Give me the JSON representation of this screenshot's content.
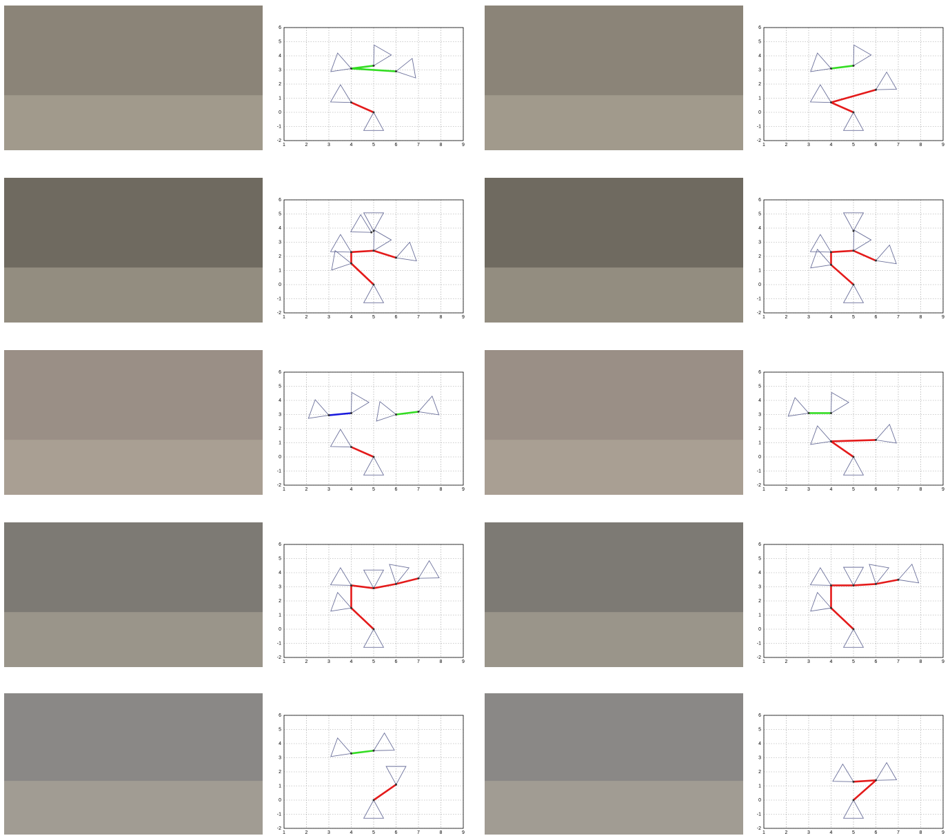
{
  "chart_data": [
    {
      "type": "cones",
      "xlim": [
        1,
        9
      ],
      "ylim": [
        -2,
        6
      ],
      "xticks": [
        1,
        2,
        3,
        4,
        5,
        6,
        7,
        8,
        9
      ],
      "yticks": [
        -2,
        -1,
        0,
        1,
        2,
        3,
        4,
        5,
        6
      ],
      "grid": true,
      "cone_color": "#6a6f9a",
      "x": [
        4,
        5,
        6,
        4,
        5
      ],
      "y": [
        3.1,
        3.3,
        2.9,
        0.7,
        0
      ],
      "angles": [
        160,
        60,
        10,
        150,
        -90
      ],
      "links": [
        {
          "color": "#33dd22",
          "x": [
            4,
            5
          ],
          "y": [
            3.1,
            3.3
          ]
        },
        {
          "color": "#33dd22",
          "x": [
            4,
            6
          ],
          "y": [
            3.1,
            2.9
          ]
        },
        {
          "color": "#e41a1a",
          "x": [
            4,
            5
          ],
          "y": [
            0.7,
            0
          ]
        }
      ]
    },
    {
      "type": "cones",
      "xlim": [
        1,
        9
      ],
      "ylim": [
        -2,
        6
      ],
      "xticks": [
        1,
        2,
        3,
        4,
        5,
        6,
        7,
        8,
        9
      ],
      "yticks": [
        -2,
        -1,
        0,
        1,
        2,
        3,
        4,
        5,
        6
      ],
      "grid": true,
      "cone_color": "#6a6f9a",
      "x": [
        4,
        5,
        4,
        5,
        6
      ],
      "y": [
        3.1,
        3.3,
        0.7,
        0,
        1.6
      ],
      "angles": [
        160,
        60,
        150,
        -90,
        30
      ],
      "links": [
        {
          "color": "#33dd22",
          "x": [
            4,
            5
          ],
          "y": [
            3.1,
            3.3
          ]
        },
        {
          "color": "#e41a1a",
          "x": [
            4,
            5
          ],
          "y": [
            0.7,
            0
          ]
        },
        {
          "color": "#e41a1a",
          "x": [
            4,
            6
          ],
          "y": [
            0.7,
            1.6
          ]
        }
      ]
    },
    {
      "type": "cones",
      "xlim": [
        1,
        9
      ],
      "ylim": [
        -2,
        6
      ],
      "xticks": [
        1,
        2,
        3,
        4,
        5,
        6,
        7,
        8,
        9
      ],
      "yticks": [
        -2,
        -1,
        0,
        1,
        2,
        3,
        4,
        5,
        6
      ],
      "grid": true,
      "cone_color": "#6a6f9a",
      "x": [
        5,
        4.9,
        4,
        4,
        5,
        6,
        5
      ],
      "y": [
        3.8,
        3.7,
        2.3,
        1.5,
        2.4,
        1.9,
        0
      ],
      "angles": [
        90,
        150,
        150,
        170,
        60,
        20,
        -90
      ],
      "links": [
        {
          "color": "#e41a1a",
          "x": [
            4,
            4
          ],
          "y": [
            1.5,
            2.3
          ]
        },
        {
          "color": "#e41a1a",
          "x": [
            4,
            5
          ],
          "y": [
            2.3,
            2.4
          ]
        },
        {
          "color": "#e41a1a",
          "x": [
            5,
            6
          ],
          "y": [
            2.4,
            1.9
          ]
        },
        {
          "color": "#e41a1a",
          "x": [
            4,
            5
          ],
          "y": [
            1.5,
            0
          ]
        }
      ]
    },
    {
      "type": "cones",
      "xlim": [
        1,
        9
      ],
      "ylim": [
        -2,
        6
      ],
      "xticks": [
        1,
        2,
        3,
        4,
        5,
        6,
        7,
        8,
        9
      ],
      "yticks": [
        -2,
        -1,
        0,
        1,
        2,
        3,
        4,
        5,
        6
      ],
      "grid": true,
      "cone_color": "#6a6f9a",
      "x": [
        5,
        4,
        4,
        5,
        6,
        5
      ],
      "y": [
        3.8,
        2.3,
        1.4,
        2.4,
        1.7,
        0
      ],
      "angles": [
        90,
        150,
        160,
        60,
        20,
        -90
      ],
      "links": [
        {
          "color": "#e41a1a",
          "x": [
            4,
            4
          ],
          "y": [
            1.4,
            2.3
          ]
        },
        {
          "color": "#e41a1a",
          "x": [
            4,
            5
          ],
          "y": [
            2.3,
            2.4
          ]
        },
        {
          "color": "#e41a1a",
          "x": [
            5,
            6
          ],
          "y": [
            2.4,
            1.7
          ]
        },
        {
          "color": "#e41a1a",
          "x": [
            4,
            5
          ],
          "y": [
            1.4,
            0
          ]
        }
      ]
    },
    {
      "type": "cones",
      "xlim": [
        1,
        9
      ],
      "ylim": [
        -2,
        6
      ],
      "xticks": [
        1,
        2,
        3,
        4,
        5,
        6,
        7,
        8,
        9
      ],
      "yticks": [
        -2,
        -1,
        0,
        1,
        2,
        3,
        4,
        5,
        6
      ],
      "grid": true,
      "cone_color": "#6a6f9a",
      "x": [
        3,
        4,
        6,
        7,
        4,
        5
      ],
      "y": [
        2.95,
        3.1,
        3,
        3.2,
        0.7,
        0
      ],
      "angles": [
        160,
        60,
        170,
        20,
        150,
        -90
      ],
      "links": [
        {
          "color": "#1a1add",
          "x": [
            3,
            4
          ],
          "y": [
            2.95,
            3.1
          ]
        },
        {
          "color": "#33dd22",
          "x": [
            6,
            7
          ],
          "y": [
            3,
            3.2
          ]
        },
        {
          "color": "#e41a1a",
          "x": [
            4,
            5
          ],
          "y": [
            0.7,
            0
          ]
        }
      ]
    },
    {
      "type": "cones",
      "xlim": [
        1,
        9
      ],
      "ylim": [
        -2,
        6
      ],
      "xticks": [
        1,
        2,
        3,
        4,
        5,
        6,
        7,
        8,
        9
      ],
      "yticks": [
        -2,
        -1,
        0,
        1,
        2,
        3,
        4,
        5,
        6
      ],
      "grid": true,
      "cone_color": "#6a6f9a",
      "x": [
        3,
        4,
        4,
        6,
        5
      ],
      "y": [
        3.1,
        3.1,
        1.1,
        1.2,
        0
      ],
      "angles": [
        160,
        60,
        160,
        20,
        -90
      ],
      "links": [
        {
          "color": "#33dd22",
          "x": [
            3,
            4
          ],
          "y": [
            3.1,
            3.1
          ]
        },
        {
          "color": "#e41a1a",
          "x": [
            4,
            6
          ],
          "y": [
            1.1,
            1.2
          ]
        },
        {
          "color": "#e41a1a",
          "x": [
            4,
            5
          ],
          "y": [
            1.1,
            0
          ]
        }
      ]
    },
    {
      "type": "cones",
      "xlim": [
        1,
        9
      ],
      "ylim": [
        -2,
        6
      ],
      "xticks": [
        1,
        2,
        3,
        4,
        5,
        6,
        7,
        8,
        9
      ],
      "yticks": [
        -2,
        -1,
        0,
        1,
        2,
        3,
        4,
        5,
        6
      ],
      "grid": true,
      "cone_color": "#6a6f9a",
      "x": [
        4,
        4,
        5,
        6,
        7,
        5
      ],
      "y": [
        3.1,
        1.5,
        2.9,
        3.2,
        3.6,
        0
      ],
      "angles": [
        150,
        160,
        90,
        80,
        30,
        -90
      ],
      "links": [
        {
          "color": "#e41a1a",
          "x": [
            4,
            4
          ],
          "y": [
            3.1,
            1.5
          ]
        },
        {
          "color": "#e41a1a",
          "x": [
            4,
            5
          ],
          "y": [
            1.5,
            0
          ]
        },
        {
          "color": "#e41a1a",
          "x": [
            4,
            5
          ],
          "y": [
            3.1,
            2.9
          ]
        },
        {
          "color": "#e41a1a",
          "x": [
            5,
            6
          ],
          "y": [
            2.9,
            3.2
          ]
        },
        {
          "color": "#e41a1a",
          "x": [
            6,
            7
          ],
          "y": [
            3.2,
            3.6
          ]
        }
      ]
    },
    {
      "type": "cones",
      "xlim": [
        1,
        9
      ],
      "ylim": [
        -2,
        6
      ],
      "xticks": [
        1,
        2,
        3,
        4,
        5,
        6,
        7,
        8,
        9
      ],
      "yticks": [
        -2,
        -1,
        0,
        1,
        2,
        3,
        4,
        5,
        6
      ],
      "grid": true,
      "cone_color": "#6a6f9a",
      "x": [
        4,
        4,
        5,
        6,
        7,
        5
      ],
      "y": [
        3.1,
        1.5,
        3.1,
        3.2,
        3.5,
        0
      ],
      "angles": [
        150,
        160,
        90,
        80,
        20,
        -90
      ],
      "links": [
        {
          "color": "#e41a1a",
          "x": [
            4,
            4
          ],
          "y": [
            3.1,
            1.5
          ]
        },
        {
          "color": "#e41a1a",
          "x": [
            4,
            5
          ],
          "y": [
            1.5,
            0
          ]
        },
        {
          "color": "#e41a1a",
          "x": [
            4,
            5
          ],
          "y": [
            3.1,
            3.1
          ]
        },
        {
          "color": "#e41a1a",
          "x": [
            5,
            6
          ],
          "y": [
            3.1,
            3.2
          ]
        },
        {
          "color": "#e41a1a",
          "x": [
            6,
            7
          ],
          "y": [
            3.2,
            3.5
          ]
        }
      ]
    },
    {
      "type": "cones",
      "xlim": [
        1,
        9
      ],
      "ylim": [
        -2,
        6
      ],
      "xticks": [
        1,
        2,
        3,
        4,
        5,
        6,
        7,
        8,
        9
      ],
      "yticks": [
        -2,
        -1,
        0,
        1,
        2,
        3,
        4,
        5,
        6
      ],
      "grid": true,
      "cone_color": "#6a6f9a",
      "x": [
        4,
        5,
        6,
        5
      ],
      "y": [
        3.3,
        3.5,
        1.1,
        0
      ],
      "angles": [
        160,
        30,
        90,
        -90
      ],
      "links": [
        {
          "color": "#33dd22",
          "x": [
            4,
            5
          ],
          "y": [
            3.3,
            3.5
          ]
        },
        {
          "color": "#e41a1a",
          "x": [
            5,
            6
          ],
          "y": [
            0,
            1.1
          ]
        }
      ]
    },
    {
      "type": "cones",
      "xlim": [
        1,
        9
      ],
      "ylim": [
        -2,
        6
      ],
      "xticks": [
        1,
        2,
        3,
        4,
        5,
        6,
        7,
        8,
        9
      ],
      "yticks": [
        -2,
        -1,
        0,
        1,
        2,
        3,
        4,
        5,
        6
      ],
      "grid": true,
      "cone_color": "#6a6f9a",
      "x": [
        5,
        6,
        5
      ],
      "y": [
        1.3,
        1.4,
        0
      ],
      "angles": [
        150,
        30,
        -90
      ],
      "links": [
        {
          "color": "#e41a1a",
          "x": [
            5,
            6
          ],
          "y": [
            1.3,
            1.4
          ]
        },
        {
          "color": "#e41a1a",
          "x": [
            6,
            5
          ],
          "y": [
            1.4,
            0
          ]
        }
      ]
    }
  ]
}
